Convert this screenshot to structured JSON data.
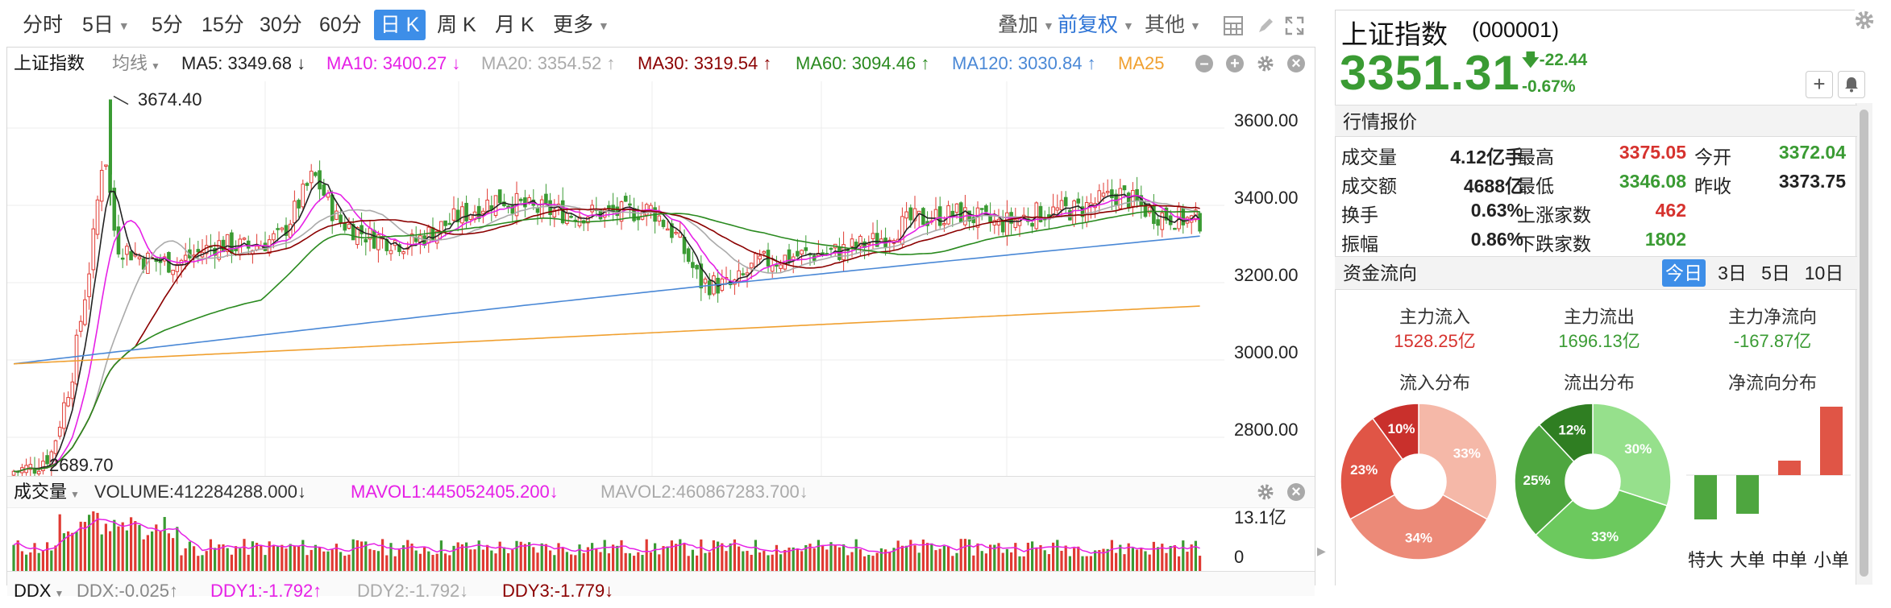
{
  "periods": [
    "分时",
    "5日",
    "5分",
    "15分",
    "30分",
    "60分",
    "日 K",
    "周 K",
    "月 K",
    "更多"
  ],
  "toolbar_right": {
    "overlay": "叠加",
    "adjust": "前复权",
    "other": "其他"
  },
  "legend": {
    "name": "上证指数",
    "ma_type": "均线",
    "ma5": "MA5: 3349.68 ↓",
    "ma10": "MA10: 3400.27 ↓",
    "ma20": "MA20: 3354.52 ↑",
    "ma30": "MA30: 3319.54 ↑",
    "ma60": "MA60: 3094.46 ↑",
    "ma120": "MA120: 3030.84 ↑",
    "ma250": "MA25"
  },
  "price_axis": [
    "3600.00",
    "3400.00",
    "3200.00",
    "3000.00",
    "2800.00"
  ],
  "annotations": {
    "high": "3674.40",
    "low": "2689.70"
  },
  "volume_legend": {
    "name": "成交量",
    "volume": "VOLUME:412284288.000↓",
    "mavol1": "MAVOL1:445052405.200↓",
    "mavol2": "MAVOL2:460867283.700↓"
  },
  "volume_axis": {
    "top": "13.1亿",
    "bottom": "0"
  },
  "ddx_legend": {
    "name": "DDX",
    "ddx": "DDX:-0.025↑",
    "ddy1": "DDY1:-1.792↑",
    "ddy2": "DDY2:-1.792↓",
    "ddy3": "DDY3:-1.779↓"
  },
  "colors": {
    "up": "#e03a33",
    "down": "#3a9b33",
    "ma5": "#222222",
    "ma10": "#e620e6",
    "ma20": "#aaaaaa",
    "ma30": "#8b0000",
    "ma60": "#2a8a1f",
    "ma120": "#4a88d6",
    "ma250": "#f0a030"
  },
  "index": {
    "name": "上证指数",
    "code": "(000001)",
    "price": "3351.31",
    "change": "-22.44",
    "pct": "-0.67%"
  },
  "quote": {
    "header": "行情报价",
    "rows": [
      {
        "l1": "成交量",
        "v1": "4.12亿手",
        "l2": "最高",
        "v2": "3375.05",
        "l3": "今开",
        "v3": "3372.04"
      },
      {
        "l1": "成交额",
        "v1": "4688亿",
        "l2": "最低",
        "v2": "3346.08",
        "l3": "昨收",
        "v3": "3373.75"
      },
      {
        "l1": "换手",
        "v1": "0.63%",
        "l2": "上涨家数",
        "v2": "462"
      },
      {
        "l1": "振幅",
        "v1": "0.86%",
        "l2": "下跌家数",
        "v2": "1802"
      }
    ]
  },
  "flow": {
    "header": "资金流向",
    "tabs": [
      "今日",
      "3日",
      "5日",
      "10日"
    ],
    "inflow_label": "主力流入",
    "inflow": "1528.25亿",
    "outflow_label": "主力流出",
    "outflow": "1696.13亿",
    "net_label": "主力净流向",
    "net": "-167.87亿",
    "in_dist": "流入分布",
    "out_dist": "流出分布",
    "net_dist": "净流向分布",
    "in_slices": [
      {
        "pct": 33,
        "label": "33%",
        "color": "#f5b8a8"
      },
      {
        "pct": 34,
        "label": "34%",
        "color": "#ec8a78"
      },
      {
        "pct": 23,
        "label": "23%",
        "color": "#e05546"
      },
      {
        "pct": 10,
        "label": "10%",
        "color": "#c9302c"
      }
    ],
    "out_slices": [
      {
        "pct": 30,
        "label": "30%",
        "color": "#96e08c"
      },
      {
        "pct": 33,
        "label": "33%",
        "color": "#6cc95e"
      },
      {
        "pct": 25,
        "label": "25%",
        "color": "#4ea63f"
      },
      {
        "pct": 12,
        "label": "12%",
        "color": "#2f7e22"
      }
    ],
    "net_cats": [
      "特大",
      "大单",
      "中单",
      "小单"
    ]
  }
}
